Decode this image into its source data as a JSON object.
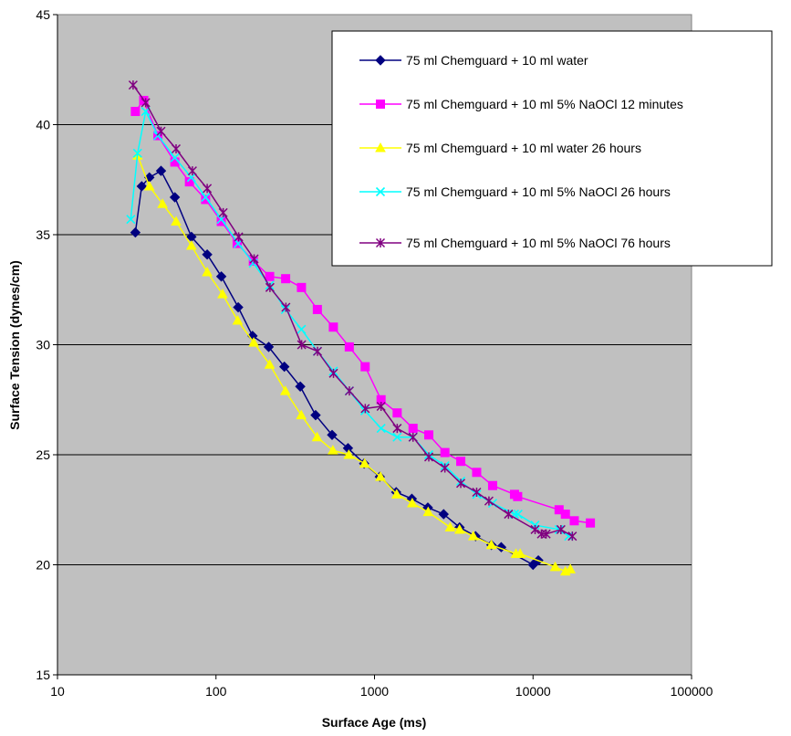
{
  "chart_data": {
    "type": "line",
    "title": "",
    "xlabel": "Surface Age (ms)",
    "ylabel": "Surface Tension (dynes/cm)",
    "xscale": "log",
    "xlim": [
      10,
      100000
    ],
    "ylim": [
      15,
      45
    ],
    "xticks": [
      10,
      100,
      1000,
      10000,
      100000
    ],
    "yticks": [
      15,
      20,
      25,
      30,
      35,
      40,
      45
    ],
    "grid": "horizontal",
    "plot_background": "#c0c0c0",
    "legend_position": "top-right",
    "series": [
      {
        "name": "75 ml Chemguard + 10 ml water",
        "color": "#000080",
        "marker": "diamond",
        "points": [
          [
            31,
            35.1
          ],
          [
            34,
            37.2
          ],
          [
            38,
            37.6
          ],
          [
            45,
            37.9
          ],
          [
            55,
            36.7
          ],
          [
            70,
            34.9
          ],
          [
            88,
            34.1
          ],
          [
            108,
            33.1
          ],
          [
            138,
            31.7
          ],
          [
            170,
            30.4
          ],
          [
            215,
            29.9
          ],
          [
            270,
            29.0
          ],
          [
            340,
            28.1
          ],
          [
            425,
            26.8
          ],
          [
            540,
            25.9
          ],
          [
            680,
            25.3
          ],
          [
            860,
            24.6
          ],
          [
            1080,
            24.0
          ],
          [
            1370,
            23.3
          ],
          [
            1720,
            23.0
          ],
          [
            2170,
            22.6
          ],
          [
            2730,
            22.3
          ],
          [
            3440,
            21.7
          ],
          [
            4340,
            21.3
          ],
          [
            5460,
            20.9
          ],
          [
            6300,
            20.8
          ],
          [
            10000,
            20.0
          ],
          [
            10800,
            20.2
          ]
        ]
      },
      {
        "name": "75 ml Chemguard + 10 ml 5% NaOCl 12 minutes",
        "color": "#ff00ff",
        "marker": "square",
        "points": [
          [
            31,
            40.6
          ],
          [
            35,
            41.1
          ],
          [
            43,
            39.5
          ],
          [
            55,
            38.3
          ],
          [
            68,
            37.4
          ],
          [
            86,
            36.6
          ],
          [
            108,
            35.6
          ],
          [
            136,
            34.6
          ],
          [
            172,
            33.8
          ],
          [
            218,
            33.1
          ],
          [
            275,
            33.0
          ],
          [
            346,
            32.6
          ],
          [
            436,
            31.6
          ],
          [
            550,
            30.8
          ],
          [
            693,
            29.9
          ],
          [
            873,
            29.0
          ],
          [
            1100,
            27.5
          ],
          [
            1390,
            26.9
          ],
          [
            1750,
            26.2
          ],
          [
            2200,
            25.9
          ],
          [
            2780,
            25.1
          ],
          [
            3500,
            24.7
          ],
          [
            4410,
            24.2
          ],
          [
            5560,
            23.6
          ],
          [
            7640,
            23.2
          ],
          [
            8000,
            23.1
          ],
          [
            14600,
            22.5
          ],
          [
            16000,
            22.3
          ],
          [
            18200,
            22.0
          ],
          [
            23000,
            21.9
          ]
        ]
      },
      {
        "name": "75 ml Chemguard + 10 ml water 26 hours",
        "color": "#ffff00",
        "marker": "triangle",
        "points": [
          [
            32,
            38.6
          ],
          [
            38,
            37.2
          ],
          [
            46,
            36.4
          ],
          [
            56,
            35.6
          ],
          [
            70,
            34.5
          ],
          [
            88,
            33.3
          ],
          [
            110,
            32.3
          ],
          [
            137,
            31.1
          ],
          [
            173,
            30.1
          ],
          [
            218,
            29.1
          ],
          [
            274,
            27.9
          ],
          [
            345,
            26.8
          ],
          [
            434,
            25.8
          ],
          [
            546,
            25.2
          ],
          [
            688,
            25.0
          ],
          [
            866,
            24.6
          ],
          [
            1090,
            24.0
          ],
          [
            1380,
            23.2
          ],
          [
            1730,
            22.8
          ],
          [
            2180,
            22.4
          ],
          [
            3000,
            21.7
          ],
          [
            3440,
            21.6
          ],
          [
            4200,
            21.3
          ],
          [
            5460,
            20.9
          ],
          [
            7800,
            20.5
          ],
          [
            8300,
            20.5
          ],
          [
            13800,
            19.9
          ],
          [
            16000,
            19.7
          ],
          [
            17200,
            19.8
          ]
        ]
      },
      {
        "name": "75 ml Chemguard + 10 ml 5% NaOCl  26 hours",
        "color": "#00ffff",
        "marker": "x",
        "points": [
          [
            29,
            35.7
          ],
          [
            32,
            38.7
          ],
          [
            36,
            40.6
          ],
          [
            43,
            39.5
          ],
          [
            55,
            38.5
          ],
          [
            70,
            37.6
          ],
          [
            86,
            36.7
          ],
          [
            108,
            35.7
          ],
          [
            138,
            34.6
          ],
          [
            172,
            33.7
          ],
          [
            218,
            32.7
          ],
          [
            274,
            31.6
          ],
          [
            346,
            30.7
          ],
          [
            436,
            29.7
          ],
          [
            550,
            28.8
          ],
          [
            693,
            27.9
          ],
          [
            870,
            27.0
          ],
          [
            1100,
            26.2
          ],
          [
            1390,
            25.8
          ],
          [
            1750,
            25.8
          ],
          [
            2200,
            25.0
          ],
          [
            2780,
            24.5
          ],
          [
            3500,
            23.8
          ],
          [
            4410,
            23.2
          ],
          [
            5560,
            22.8
          ],
          [
            7640,
            22.3
          ],
          [
            8050,
            22.3
          ],
          [
            10300,
            21.8
          ],
          [
            14600,
            21.6
          ],
          [
            16800,
            21.3
          ]
        ]
      },
      {
        "name": "75 ml Chemguard + 10 ml 5% NaOCl 76 hours",
        "color": "#800080",
        "marker": "star",
        "points": [
          [
            30,
            41.8
          ],
          [
            36,
            41.0
          ],
          [
            45,
            39.7
          ],
          [
            56,
            38.9
          ],
          [
            71,
            37.9
          ],
          [
            88,
            37.1
          ],
          [
            111,
            36.0
          ],
          [
            139,
            34.9
          ],
          [
            174,
            33.9
          ],
          [
            219,
            32.6
          ],
          [
            276,
            31.7
          ],
          [
            347,
            30.0
          ],
          [
            437,
            29.7
          ],
          [
            551,
            28.7
          ],
          [
            694,
            27.9
          ],
          [
            874,
            27.1
          ],
          [
            1100,
            27.2
          ],
          [
            1390,
            26.2
          ],
          [
            1750,
            25.8
          ],
          [
            2200,
            24.9
          ],
          [
            2780,
            24.4
          ],
          [
            3500,
            23.7
          ],
          [
            4410,
            23.3
          ],
          [
            5270,
            22.9
          ],
          [
            7000,
            22.3
          ],
          [
            10300,
            21.6
          ],
          [
            11300,
            21.4
          ],
          [
            12100,
            21.4
          ],
          [
            15000,
            21.6
          ],
          [
            17700,
            21.3
          ]
        ]
      }
    ]
  }
}
